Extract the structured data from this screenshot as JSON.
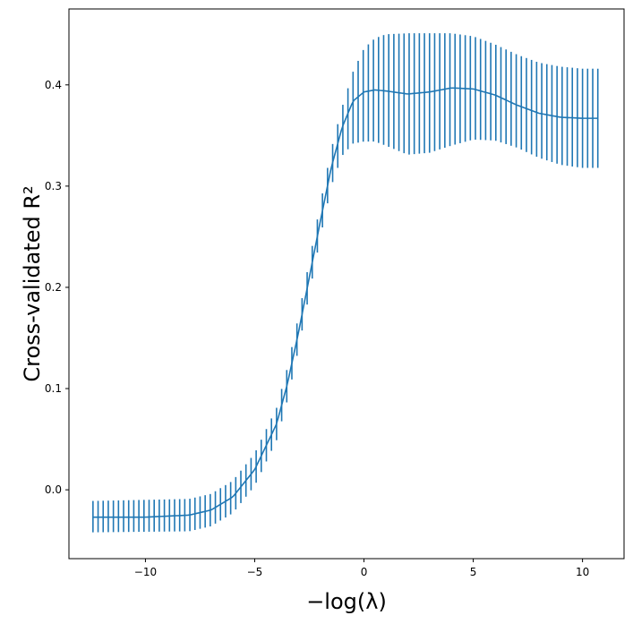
{
  "chart_data": {
    "type": "errorbar-line",
    "title": "",
    "xlabel": "−log(λ)",
    "ylabel": "Cross-validated R²",
    "xlim": [
      -13.5,
      11.9
    ],
    "ylim": [
      -0.068,
      0.475
    ],
    "xticks": [
      -10,
      -5,
      0,
      5,
      10
    ],
    "xtick_labels": [
      "−10",
      "−5",
      "0",
      "5",
      "10"
    ],
    "yticks": [
      0.0,
      0.1,
      0.2,
      0.3,
      0.4
    ],
    "ytick_labels": [
      "0.0",
      "0.1",
      "0.2",
      "0.3",
      "0.4"
    ],
    "grid": false,
    "series_color": "#1f77b4",
    "curve": {
      "x": [
        -12.4,
        -11.0,
        -10.0,
        -9.0,
        -8.0,
        -7.0,
        -6.0,
        -5.0,
        -4.0,
        -3.5,
        -3.0,
        -2.5,
        -2.0,
        -1.5,
        -1.0,
        -0.5,
        0.0,
        0.5,
        1.0,
        2.0,
        3.0,
        4.0,
        5.0,
        6.0,
        7.0,
        8.0,
        9.0,
        10.0,
        10.7
      ],
      "y": [
        -0.027,
        -0.027,
        -0.027,
        -0.026,
        -0.025,
        -0.02,
        -0.007,
        0.02,
        0.065,
        0.105,
        0.155,
        0.21,
        0.265,
        0.318,
        0.358,
        0.384,
        0.393,
        0.395,
        0.394,
        0.391,
        0.393,
        0.397,
        0.396,
        0.39,
        0.38,
        0.372,
        0.368,
        0.367,
        0.367
      ]
    },
    "upper": {
      "x": [
        -12.4,
        -8.0,
        -7.0,
        -6.0,
        -5.0,
        -4.0,
        -3.5,
        -3.0,
        -2.5,
        -2.0,
        -1.5,
        -1.0,
        -0.5,
        0.0,
        0.5,
        1.0,
        2.0,
        3.0,
        4.0,
        5.0,
        6.0,
        7.0,
        8.0,
        9.0,
        10.0,
        10.7
      ],
      "y": [
        -0.011,
        -0.009,
        -0.004,
        0.009,
        0.036,
        0.081,
        0.121,
        0.171,
        0.226,
        0.282,
        0.336,
        0.378,
        0.413,
        0.436,
        0.446,
        0.45,
        0.451,
        0.451,
        0.451,
        0.448,
        0.44,
        0.43,
        0.422,
        0.418,
        0.416,
        0.416
      ]
    },
    "lower": {
      "x": [
        -12.4,
        -8.0,
        -7.0,
        -6.0,
        -5.0,
        -4.0,
        -3.5,
        -3.0,
        -2.5,
        -2.0,
        -1.5,
        -1.0,
        -0.5,
        0.0,
        0.5,
        1.0,
        2.0,
        3.0,
        4.0,
        5.0,
        6.0,
        7.0,
        8.0,
        9.0,
        10.0,
        10.7
      ],
      "y": [
        -0.042,
        -0.041,
        -0.036,
        -0.023,
        0.004,
        0.049,
        0.089,
        0.139,
        0.194,
        0.249,
        0.3,
        0.33,
        0.342,
        0.344,
        0.344,
        0.34,
        0.331,
        0.333,
        0.34,
        0.346,
        0.345,
        0.338,
        0.328,
        0.321,
        0.318,
        0.318
      ]
    },
    "errorbar_count": 100
  }
}
